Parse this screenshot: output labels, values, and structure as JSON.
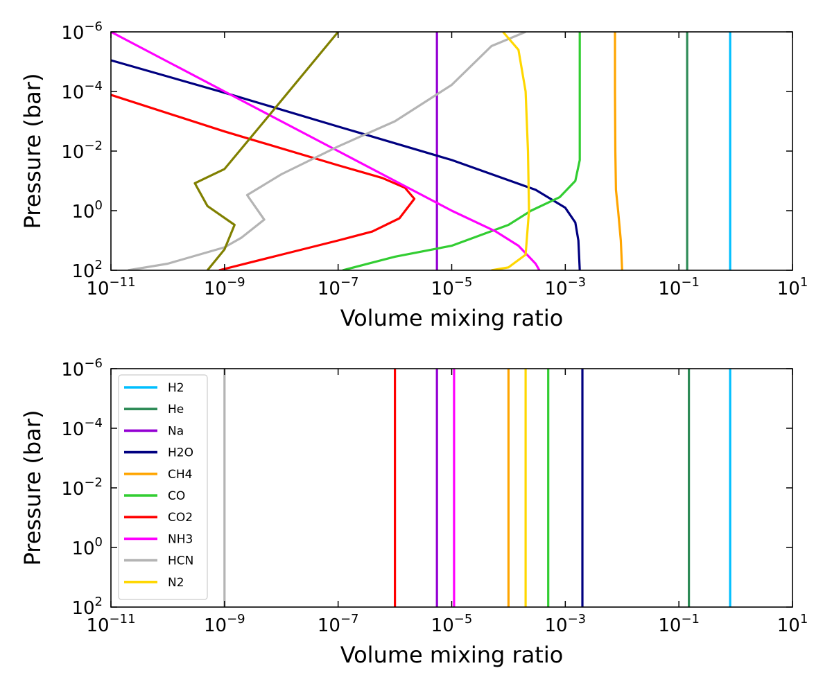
{
  "chart_data": [
    {
      "type": "line",
      "xlabel": "Volume mixing ratio",
      "ylabel": "Pressure (bar)",
      "xscale": "log",
      "yscale": "log",
      "y_inverted": true,
      "xlim": [
        1e-11,
        10
      ],
      "ylim": [
        100,
        1e-06
      ],
      "x_ticks": [
        {
          "base": "10",
          "exp": "−11"
        },
        {
          "base": "10",
          "exp": "−9"
        },
        {
          "base": "10",
          "exp": "−7"
        },
        {
          "base": "10",
          "exp": "−5"
        },
        {
          "base": "10",
          "exp": "−3"
        },
        {
          "base": "10",
          "exp": "−1"
        },
        {
          "base": "10",
          "exp": "1"
        }
      ],
      "y_ticks": [
        {
          "base": "10",
          "exp": "−6"
        },
        {
          "base": "10",
          "exp": "−4"
        },
        {
          "base": "10",
          "exp": "−2"
        },
        {
          "base": "10",
          "exp": "0"
        },
        {
          "base": "10",
          "exp": "2"
        }
      ],
      "legend": null,
      "series": [
        {
          "name": "H2",
          "color": "#00bfff",
          "points": [
            [
              0.8,
              1e-06
            ],
            [
              0.8,
              100
            ]
          ]
        },
        {
          "name": "He",
          "color": "#2e8b57",
          "points": [
            [
              0.14,
              1e-06
            ],
            [
              0.14,
              100
            ]
          ]
        },
        {
          "name": "Na",
          "color": "#9400d3",
          "points": [
            [
              5.5e-06,
              1e-06
            ],
            [
              5.5e-06,
              100
            ]
          ]
        },
        {
          "name": "H2O",
          "color": "#000080",
          "points": [
            [
              1e-11,
              9e-06
            ],
            [
              1e-09,
              0.00011
            ],
            [
              1e-07,
              0.0015
            ],
            [
              1e-05,
              0.02
            ],
            [
              0.0003,
              0.2
            ],
            [
              0.001,
              0.8
            ],
            [
              0.0015,
              2.5
            ],
            [
              0.0017,
              10
            ],
            [
              0.0018,
              100
            ]
          ]
        },
        {
          "name": "CH4",
          "color": "#ffa500",
          "points": [
            [
              0.0075,
              1e-06
            ],
            [
              0.0075,
              0.0001
            ],
            [
              0.0076,
              0.01
            ],
            [
              0.0078,
              0.2
            ],
            [
              0.0085,
              1
            ],
            [
              0.0095,
              10
            ],
            [
              0.01,
              100
            ]
          ]
        },
        {
          "name": "CO",
          "color": "#32cd32",
          "points": [
            [
              0.0018,
              1e-06
            ],
            [
              0.0018,
              0.0001
            ],
            [
              0.0018,
              0.02
            ],
            [
              0.0015,
              0.1
            ],
            [
              0.0008,
              0.35
            ],
            [
              0.00025,
              1
            ],
            [
              0.0001,
              3
            ],
            [
              1e-05,
              15
            ],
            [
              1e-06,
              35
            ],
            [
              1.2e-07,
              100
            ]
          ]
        },
        {
          "name": "CO2",
          "color": "#ff0000",
          "points": [
            [
              1e-11,
              0.00013
            ],
            [
              1e-09,
              0.0022
            ],
            [
              1e-07,
              0.03
            ],
            [
              6e-07,
              0.08
            ],
            [
              1.5e-06,
              0.17
            ],
            [
              2.2e-06,
              0.4
            ],
            [
              1.2e-06,
              1.8
            ],
            [
              4e-07,
              5
            ],
            [
              1e-07,
              10
            ],
            [
              1e-08,
              30
            ],
            [
              8e-10,
              100
            ]
          ]
        },
        {
          "name": "NH3",
          "color": "#ff00ff",
          "points": [
            [
              1e-11,
              1e-06
            ],
            [
              1e-09,
              0.0001
            ],
            [
              1e-07,
              0.01
            ],
            [
              1e-06,
              0.1
            ],
            [
              1e-05,
              1
            ],
            [
              6e-05,
              5
            ],
            [
              0.00015,
              15
            ],
            [
              0.0003,
              60
            ],
            [
              0.00035,
              100
            ]
          ]
        },
        {
          "name": "HCN",
          "color": "#b4b4b4",
          "points": [
            [
              0.0002,
              1e-06
            ],
            [
              5e-05,
              3e-06
            ],
            [
              1e-05,
              6e-05
            ],
            [
              1e-06,
              0.001
            ],
            [
              1e-07,
              0.007
            ],
            [
              1e-08,
              0.06
            ],
            [
              2.5e-09,
              0.3
            ],
            [
              5e-09,
              2
            ],
            [
              2e-09,
              8
            ],
            [
              1e-09,
              17
            ],
            [
              1e-10,
              60
            ],
            [
              2e-11,
              100
            ]
          ]
        },
        {
          "name": "N2",
          "color": "#ffd700",
          "points": [
            [
              8e-05,
              1e-06
            ],
            [
              0.00015,
              4e-06
            ],
            [
              0.0002,
              0.0001
            ],
            [
              0.00022,
              0.01
            ],
            [
              0.00023,
              1
            ],
            [
              0.0002,
              30
            ],
            [
              0.0001,
              80
            ],
            [
              5e-05,
              100
            ]
          ]
        },
        {
          "name": "",
          "color": "#808000",
          "points": [
            [
              1e-07,
              1e-06
            ],
            [
              5e-09,
              0.001
            ],
            [
              1e-09,
              0.04
            ],
            [
              3e-10,
              0.12
            ],
            [
              5e-10,
              0.7
            ],
            [
              1.5e-09,
              3
            ],
            [
              1e-09,
              20
            ],
            [
              5e-10,
              100
            ]
          ]
        }
      ]
    },
    {
      "type": "line",
      "xlabel": "Volume mixing ratio",
      "ylabel": "Pressure (bar)",
      "xscale": "log",
      "yscale": "log",
      "y_inverted": true,
      "xlim": [
        1e-11,
        10
      ],
      "ylim": [
        100,
        1e-06
      ],
      "x_ticks": [
        {
          "base": "10",
          "exp": "−11"
        },
        {
          "base": "10",
          "exp": "−9"
        },
        {
          "base": "10",
          "exp": "−7"
        },
        {
          "base": "10",
          "exp": "−5"
        },
        {
          "base": "10",
          "exp": "−3"
        },
        {
          "base": "10",
          "exp": "−1"
        },
        {
          "base": "10",
          "exp": "1"
        }
      ],
      "y_ticks": [
        {
          "base": "10",
          "exp": "−6"
        },
        {
          "base": "10",
          "exp": "−4"
        },
        {
          "base": "10",
          "exp": "−2"
        },
        {
          "base": "10",
          "exp": "0"
        },
        {
          "base": "10",
          "exp": "2"
        }
      ],
      "legend": "upper-left",
      "series": [
        {
          "name": "H2",
          "color": "#00bfff",
          "points": [
            [
              0.8,
              1e-06
            ],
            [
              0.8,
              100
            ]
          ]
        },
        {
          "name": "He",
          "color": "#2e8b57",
          "points": [
            [
              0.15,
              1e-06
            ],
            [
              0.15,
              100
            ]
          ]
        },
        {
          "name": "Na",
          "color": "#9400d3",
          "points": [
            [
              5.5e-06,
              1e-06
            ],
            [
              5.5e-06,
              100
            ]
          ]
        },
        {
          "name": "H2O",
          "color": "#000080",
          "points": [
            [
              0.002,
              1e-06
            ],
            [
              0.002,
              100
            ]
          ]
        },
        {
          "name": "CH4",
          "color": "#ffa500",
          "points": [
            [
              0.0001,
              1e-06
            ],
            [
              0.0001,
              100
            ]
          ]
        },
        {
          "name": "CO",
          "color": "#32cd32",
          "points": [
            [
              0.0005,
              1e-06
            ],
            [
              0.0005,
              100
            ]
          ]
        },
        {
          "name": "CO2",
          "color": "#ff0000",
          "points": [
            [
              1e-06,
              1e-06
            ],
            [
              1e-06,
              100
            ]
          ]
        },
        {
          "name": "NH3",
          "color": "#ff00ff",
          "points": [
            [
              1.1e-05,
              1e-06
            ],
            [
              1.1e-05,
              100
            ]
          ]
        },
        {
          "name": "HCN",
          "color": "#b4b4b4",
          "points": [
            [
              1e-09,
              1e-06
            ],
            [
              1e-09,
              100
            ]
          ]
        },
        {
          "name": "N2",
          "color": "#ffd700",
          "points": [
            [
              0.0002,
              1e-06
            ],
            [
              0.0002,
              100
            ]
          ]
        }
      ]
    }
  ]
}
